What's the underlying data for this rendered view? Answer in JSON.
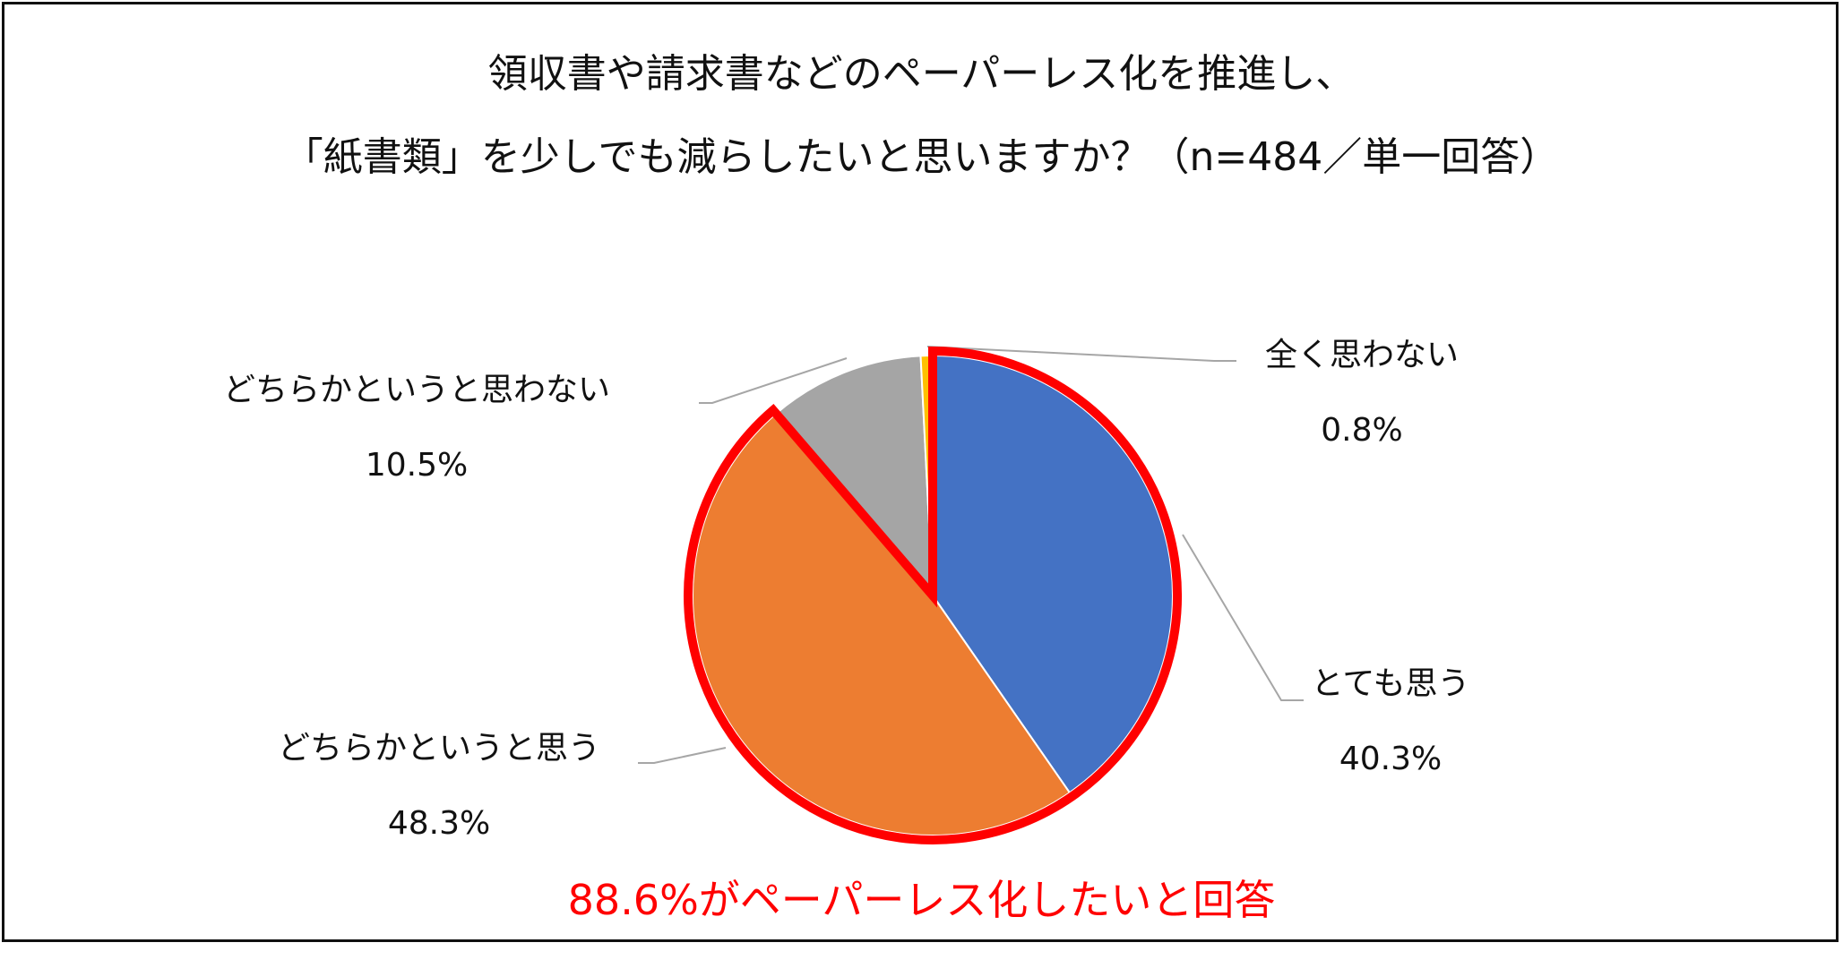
{
  "title_line1": "領収書や請求書などのペーパーレス化を推進し、",
  "title_line2": "「紙書類」を少しでも減らしたいと思いますか？（n=484／単一回答）",
  "conclusion": "88.6%がペーパーレス化したいと回答",
  "highlight_color": "#ff0000",
  "chart_data": {
    "type": "pie",
    "title": "領収書や請求書などのペーパーレス化を推進し、「紙書類」を少しでも減らしたいと思いますか？（n=484／単一回答）",
    "unit": "%",
    "n": 484,
    "start_angle_deg": 0,
    "direction": "clockwise",
    "legend": "none (data labels with leader lines)",
    "slices": [
      {
        "label": "とても思う",
        "value": 40.3,
        "value_label": "40.3%",
        "color": "#4472c4",
        "highlighted": true
      },
      {
        "label": "どちらかというと思う",
        "value": 48.3,
        "value_label": "48.3%",
        "color": "#ed7d31",
        "highlighted": true
      },
      {
        "label": "どちらかというと思わない",
        "value": 10.5,
        "value_label": "10.5%",
        "color": "#a5a5a5",
        "highlighted": false
      },
      {
        "label": "全く思わない",
        "value": 0.8,
        "value_label": "0.8%",
        "color": "#ffc000",
        "highlighted": false
      }
    ]
  }
}
